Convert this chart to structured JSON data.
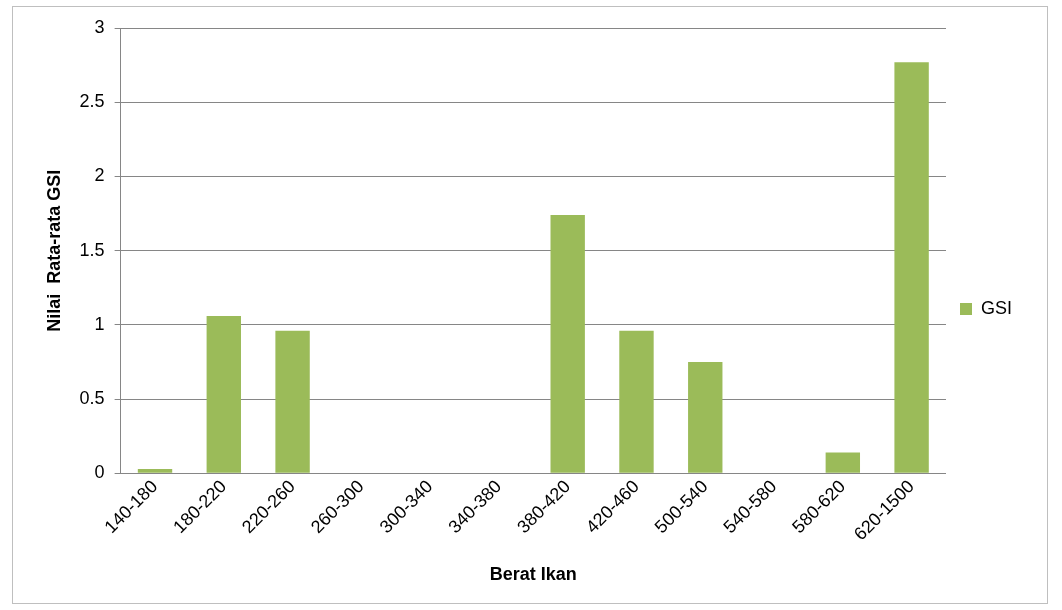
{
  "chart_data": {
    "type": "bar",
    "xlabel": "Berat Ikan",
    "ylabel": "Nilai  Rata-rata GSI",
    "categories": [
      "140-180",
      "180-220",
      "220-260",
      "260-300",
      "300-340",
      "340-380",
      "380-420",
      "420-460",
      "500-540",
      "540-580",
      "580-620",
      "620-1500"
    ],
    "series": [
      {
        "name": "GSI",
        "color": "#9bbb59",
        "values": [
          0.03,
          1.06,
          0.96,
          0,
          0,
          0,
          1.74,
          0.96,
          0.75,
          0,
          0.14,
          2.77
        ]
      }
    ],
    "ylim": [
      0,
      3
    ],
    "yticks": [
      0,
      0.5,
      1,
      1.5,
      2,
      2.5,
      3
    ],
    "grid": "y",
    "legend": "right"
  }
}
